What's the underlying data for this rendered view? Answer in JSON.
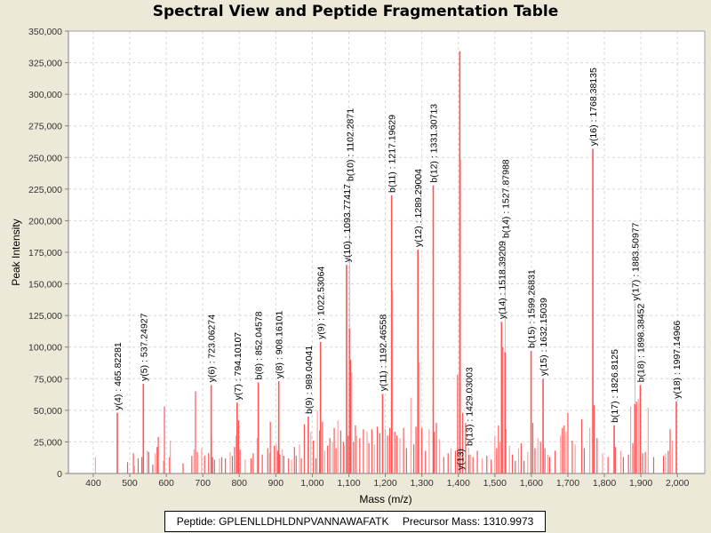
{
  "chart_data": {
    "type": "bar",
    "title": "Spectral View and Peptide Fragmentation Table",
    "xlabel": "Mass (m/z)",
    "ylabel": "Peak Intensity",
    "xlim": [
      332,
      2075
    ],
    "ylim": [
      0,
      350000
    ],
    "grid": true,
    "x_ticks": [
      "400",
      "500",
      "600",
      "700",
      "800",
      "900",
      "1,000",
      "1,100",
      "1,200",
      "1,300",
      "1,400",
      "1,500",
      "1,600",
      "1,700",
      "1,800",
      "1,900",
      "2,000"
    ],
    "x_tick_values": [
      400,
      500,
      600,
      700,
      800,
      900,
      1000,
      1100,
      1200,
      1300,
      1400,
      1500,
      1600,
      1700,
      1800,
      1900,
      2000
    ],
    "y_ticks": [
      "0",
      "25,000",
      "50,000",
      "75,000",
      "100,000",
      "125,000",
      "150,000",
      "175,000",
      "200,000",
      "225,000",
      "250,000",
      "275,000",
      "300,000",
      "325,000",
      "350,000"
    ],
    "y_tick_values": [
      0,
      25000,
      50000,
      75000,
      100000,
      125000,
      150000,
      175000,
      200000,
      225000,
      250000,
      275000,
      300000,
      325000,
      350000
    ],
    "annotated_peaks": [
      {
        "label": "y(4) : 465.82281",
        "mz": 465.82,
        "intensity": 48000
      },
      {
        "label": "y(5) : 537.24927",
        "mz": 537.25,
        "intensity": 71000
      },
      {
        "label": "y(6) : 723.06274",
        "mz": 723.06,
        "intensity": 70000
      },
      {
        "label": "y(7) : 794.10107",
        "mz": 794.1,
        "intensity": 56000
      },
      {
        "label": "b(8) : 852.04578",
        "mz": 852.05,
        "intensity": 72000
      },
      {
        "label": "y(8) : 908.16101",
        "mz": 908.16,
        "intensity": 73000
      },
      {
        "label": "b(9) : 989.04041",
        "mz": 989.04,
        "intensity": 45000
      },
      {
        "label": "y(9) : 1022.53064",
        "mz": 1022.53,
        "intensity": 104000
      },
      {
        "label": "b(10) : 1102.2871",
        "mz": 1102.29,
        "intensity": 115000
      },
      {
        "label": "y(10) : 1093.77417",
        "mz": 1093.77,
        "intensity": 165000
      },
      {
        "label": "y(11) : 1192.46558",
        "mz": 1192.47,
        "intensity": 63000
      },
      {
        "label": "b(11) : 1217.19629",
        "mz": 1217.2,
        "intensity": 220000
      },
      {
        "label": "y(12) : 1289.29004",
        "mz": 1289.29,
        "intensity": 177000
      },
      {
        "label": "b(12) : 1331.30713",
        "mz": 1331.31,
        "intensity": 228000
      },
      {
        "label": "y(13)",
        "mz": 1404.0,
        "intensity": 334000
      },
      {
        "label": "b(13) : 1429.03003",
        "mz": 1429.03,
        "intensity": 15000
      },
      {
        "label": "b(14) : 1527.87988",
        "mz": 1527.88,
        "intensity": 96000
      },
      {
        "label": "y(14) : 1518.39209",
        "mz": 1518.39,
        "intensity": 120000
      },
      {
        "label": "b(15) : 1599.26831",
        "mz": 1599.27,
        "intensity": 97000
      },
      {
        "label": "y(15) : 1632.15039",
        "mz": 1632.15,
        "intensity": 75000
      },
      {
        "label": "y(16) : 1768.38135",
        "mz": 1768.38,
        "intensity": 257000
      },
      {
        "label": "b(17) : 1826.8125",
        "mz": 1826.81,
        "intensity": 38000
      },
      {
        "label": "y(17) : 1883.50977",
        "mz": 1883.51,
        "intensity": 55000
      },
      {
        "label": "b(18) : 1898.38452",
        "mz": 1898.38,
        "intensity": 70000
      },
      {
        "label": "y(18) : 1997.14966",
        "mz": 1997.15,
        "intensity": 57000
      }
    ],
    "minor_peaks": [
      [
        406,
        13000
      ],
      [
        494,
        9000
      ],
      [
        510,
        16000
      ],
      [
        513,
        6000
      ],
      [
        523,
        12000
      ],
      [
        533,
        13000
      ],
      [
        548,
        18000
      ],
      [
        552,
        17000
      ],
      [
        563,
        7000
      ],
      [
        570,
        16000
      ],
      [
        575,
        21000
      ],
      [
        578,
        29000
      ],
      [
        592,
        10000
      ],
      [
        595,
        53000
      ],
      [
        609,
        13000
      ],
      [
        611,
        26000
      ],
      [
        646,
        8000
      ],
      [
        670,
        14000
      ],
      [
        676,
        19000
      ],
      [
        680,
        65000
      ],
      [
        685,
        17000
      ],
      [
        697,
        20000
      ],
      [
        705,
        14000
      ],
      [
        716,
        16000
      ],
      [
        724,
        28000
      ],
      [
        727,
        13000
      ],
      [
        732,
        11000
      ],
      [
        746,
        12000
      ],
      [
        752,
        13000
      ],
      [
        762,
        12000
      ],
      [
        775,
        17000
      ],
      [
        781,
        14000
      ],
      [
        787,
        21000
      ],
      [
        791,
        30000
      ],
      [
        798,
        42000
      ],
      [
        802,
        19000
      ],
      [
        816,
        11000
      ],
      [
        832,
        12000
      ],
      [
        838,
        16000
      ],
      [
        849,
        28000
      ],
      [
        863,
        15000
      ],
      [
        878,
        20000
      ],
      [
        883,
        16000
      ],
      [
        885,
        41000
      ],
      [
        896,
        22000
      ],
      [
        901,
        23000
      ],
      [
        905,
        18000
      ],
      [
        911,
        15000
      ],
      [
        918,
        19000
      ],
      [
        922,
        14000
      ],
      [
        935,
        12000
      ],
      [
        943,
        11000
      ],
      [
        951,
        21000
      ],
      [
        956,
        14000
      ],
      [
        965,
        23000
      ],
      [
        970,
        12000
      ],
      [
        978,
        39000
      ],
      [
        996,
        33000
      ],
      [
        1003,
        26000
      ],
      [
        1010,
        12000
      ],
      [
        1014,
        50000
      ],
      [
        1020,
        34000
      ],
      [
        1028,
        41000
      ],
      [
        1034,
        18000
      ],
      [
        1042,
        22000
      ],
      [
        1048,
        28000
      ],
      [
        1055,
        25000
      ],
      [
        1060,
        36000
      ],
      [
        1065,
        20000
      ],
      [
        1070,
        42000
      ],
      [
        1078,
        34000
      ],
      [
        1085,
        25000
      ],
      [
        1088,
        22000
      ],
      [
        1098,
        30000
      ],
      [
        1105,
        90000
      ],
      [
        1108,
        80000
      ],
      [
        1113,
        25000
      ],
      [
        1118,
        38000
      ],
      [
        1122,
        30000
      ],
      [
        1130,
        28000
      ],
      [
        1140,
        35000
      ],
      [
        1150,
        33000
      ],
      [
        1155,
        24000
      ],
      [
        1163,
        35000
      ],
      [
        1170,
        23000
      ],
      [
        1178,
        37000
      ],
      [
        1185,
        32000
      ],
      [
        1200,
        35000
      ],
      [
        1206,
        30000
      ],
      [
        1212,
        36000
      ],
      [
        1220,
        145000
      ],
      [
        1226,
        33000
      ],
      [
        1232,
        30000
      ],
      [
        1240,
        28000
      ],
      [
        1250,
        36000
      ],
      [
        1258,
        20000
      ],
      [
        1270,
        60000
      ],
      [
        1278,
        23000
      ],
      [
        1284,
        37000
      ],
      [
        1293,
        88000
      ],
      [
        1300,
        36000
      ],
      [
        1310,
        18000
      ],
      [
        1320,
        35000
      ],
      [
        1334,
        33000
      ],
      [
        1340,
        40000
      ],
      [
        1348,
        27000
      ],
      [
        1360,
        13000
      ],
      [
        1372,
        16000
      ],
      [
        1380,
        20000
      ],
      [
        1392,
        18000
      ],
      [
        1398,
        78000
      ],
      [
        1406,
        248000
      ],
      [
        1412,
        48000
      ],
      [
        1420,
        40000
      ],
      [
        1434,
        15000
      ],
      [
        1440,
        13000
      ],
      [
        1452,
        18000
      ],
      [
        1465,
        12000
      ],
      [
        1478,
        14000
      ],
      [
        1490,
        11000
      ],
      [
        1500,
        30000
      ],
      [
        1505,
        20000
      ],
      [
        1510,
        38000
      ],
      [
        1514,
        25000
      ],
      [
        1522,
        100000
      ],
      [
        1530,
        35000
      ],
      [
        1540,
        22000
      ],
      [
        1548,
        15000
      ],
      [
        1556,
        10000
      ],
      [
        1565,
        20000
      ],
      [
        1572,
        24000
      ],
      [
        1580,
        10000
      ],
      [
        1590,
        17000
      ],
      [
        1604,
        40000
      ],
      [
        1610,
        20000
      ],
      [
        1618,
        28000
      ],
      [
        1625,
        25000
      ],
      [
        1637,
        20000
      ],
      [
        1645,
        15000
      ],
      [
        1650,
        13000
      ],
      [
        1665,
        18000
      ],
      [
        1680,
        30000
      ],
      [
        1685,
        36000
      ],
      [
        1690,
        38000
      ],
      [
        1695,
        33000
      ],
      [
        1700,
        48000
      ],
      [
        1712,
        26000
      ],
      [
        1720,
        23000
      ],
      [
        1738,
        43000
      ],
      [
        1745,
        20000
      ],
      [
        1760,
        36000
      ],
      [
        1772,
        54000
      ],
      [
        1780,
        28000
      ],
      [
        1795,
        16000
      ],
      [
        1810,
        13000
      ],
      [
        1830,
        21000
      ],
      [
        1845,
        18000
      ],
      [
        1852,
        13000
      ],
      [
        1866,
        15000
      ],
      [
        1872,
        53000
      ],
      [
        1878,
        24000
      ],
      [
        1888,
        57000
      ],
      [
        1893,
        59000
      ],
      [
        1905,
        16000
      ],
      [
        1912,
        17000
      ],
      [
        1920,
        52000
      ],
      [
        1935,
        13000
      ],
      [
        1962,
        14000
      ],
      [
        1968,
        16000
      ],
      [
        1975,
        18000
      ],
      [
        1980,
        35000
      ],
      [
        1986,
        26000
      ]
    ]
  },
  "footer": {
    "peptide_label": "Peptide: GPLENLLDHLDNPVANNAWAFATK",
    "precursor_label": "Precursor Mass: 1310.9973"
  },
  "colors": {
    "peak": "#FF5555",
    "peak_light": "#FFA0A0",
    "background": "#ECE9D8",
    "plot_bg": "#FFFFFF",
    "grid": "#D8D8D8"
  }
}
